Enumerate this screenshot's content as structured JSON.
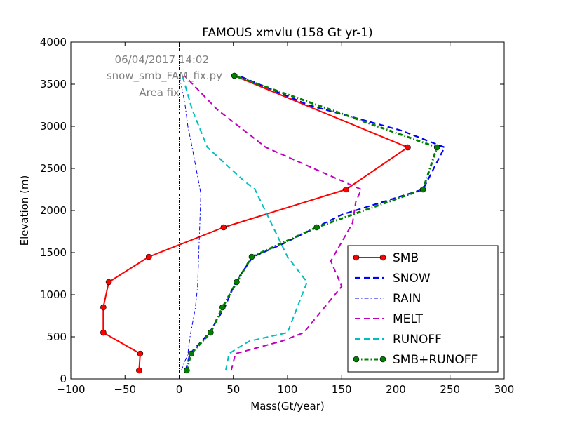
{
  "chart_data": {
    "type": "line",
    "title": "FAMOUS xmvlu (158 Gt yr-1)",
    "xlabel": "Mass(Gt/year)",
    "ylabel": "Elevation (m)",
    "xlim": [
      -100,
      300
    ],
    "ylim": [
      0,
      4000
    ],
    "xticks": [
      -100,
      -50,
      0,
      50,
      100,
      150,
      200,
      250,
      300
    ],
    "yticks": [
      0,
      500,
      1000,
      1500,
      2000,
      2500,
      3000,
      3500,
      4000
    ],
    "xtick_labels": [
      "−100",
      "−50",
      "0",
      "50",
      "100",
      "150",
      "200",
      "250",
      "300"
    ],
    "ytick_labels": [
      "0",
      "500",
      "1000",
      "1500",
      "2000",
      "2500",
      "3000",
      "3500",
      "4000"
    ],
    "grid": false,
    "legend_position": "lower-right",
    "annotations": [
      "06/04/2017 14:02",
      "snow_smb_FAM_fix.py",
      "Area fix"
    ],
    "zero_line": {
      "x": 0,
      "color": "#000000",
      "style": "dashdot"
    },
    "series": [
      {
        "name": "SMB",
        "color": "#ff0000",
        "style": "solid",
        "markers": true,
        "x": [
          -37,
          -36,
          -70,
          -70,
          -65,
          -28,
          41,
          154,
          211,
          51
        ],
        "y": [
          100,
          300,
          550,
          850,
          1150,
          1450,
          1800,
          2250,
          2750,
          3600
        ]
      },
      {
        "name": "SNOW",
        "color": "#0000ff",
        "style": "dashed",
        "markers": false,
        "x": [
          6,
          10,
          28,
          42,
          52,
          68,
          95,
          150,
          225,
          245,
          205,
          120,
          55
        ],
        "y": [
          100,
          300,
          550,
          850,
          1150,
          1450,
          1600,
          1950,
          2250,
          2750,
          2950,
          3250,
          3600
        ]
      },
      {
        "name": "RAIN",
        "color": "#0000ff",
        "style": "dashdot",
        "markers": false,
        "x": [
          2,
          8,
          10,
          15,
          17,
          18,
          20,
          12,
          8,
          5,
          0
        ],
        "y": [
          100,
          300,
          500,
          850,
          1100,
          1450,
          2200,
          2750,
          3000,
          3300,
          3600
        ]
      },
      {
        "name": "MELT",
        "color": "#bf00bf",
        "style": "dashed",
        "markers": false,
        "x": [
          48,
          52,
          95,
          115,
          150,
          140,
          160,
          163,
          168,
          80,
          35,
          5
        ],
        "y": [
          100,
          300,
          450,
          550,
          1100,
          1400,
          1850,
          2100,
          2250,
          2750,
          3200,
          3600
        ]
      },
      {
        "name": "RUNOFF",
        "color": "#00bfbf",
        "style": "dashed",
        "markers": false,
        "x": [
          43,
          46,
          52,
          65,
          100,
          118,
          100,
          70,
          60,
          26,
          12,
          3
        ],
        "y": [
          100,
          300,
          350,
          450,
          550,
          1150,
          1450,
          2250,
          2350,
          2750,
          3200,
          3600
        ]
      },
      {
        "name": "SMB+RUNOFF",
        "color": "#007f00",
        "style": "dashdot",
        "markers": true,
        "x": [
          7,
          11,
          29,
          40,
          53,
          67,
          127,
          225,
          238,
          51
        ],
        "y": [
          100,
          300,
          550,
          850,
          1150,
          1450,
          1800,
          2250,
          2750,
          3600
        ]
      }
    ]
  }
}
